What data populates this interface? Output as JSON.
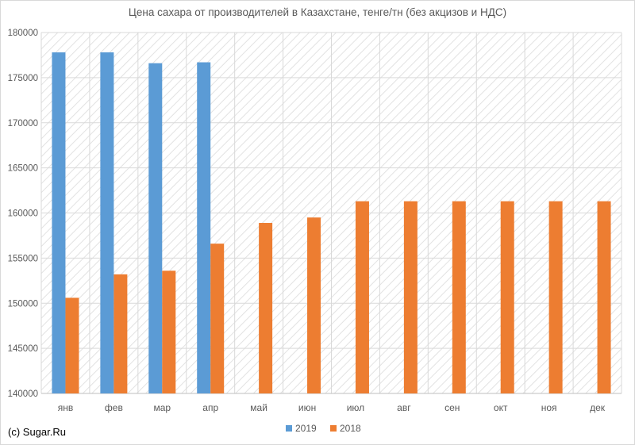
{
  "chart_data": {
    "type": "bar",
    "title": "Цена сахара от производителей в Казахстане, тенге/тн (без акцизов и НДС)",
    "xlabel": "",
    "ylabel": "",
    "categories": [
      "янв",
      "фев",
      "мар",
      "апр",
      "май",
      "июн",
      "июл",
      "авг",
      "сен",
      "окт",
      "ноя",
      "дек"
    ],
    "series": [
      {
        "name": "2019",
        "color": "#5b9bd5",
        "values": [
          177800,
          177800,
          176600,
          176700,
          null,
          null,
          null,
          null,
          null,
          null,
          null,
          null
        ]
      },
      {
        "name": "2018",
        "color": "#ed7d31",
        "values": [
          150600,
          153200,
          153600,
          156600,
          158900,
          159500,
          161300,
          161300,
          161300,
          161300,
          161300,
          161300
        ]
      }
    ],
    "ylim": [
      140000,
      180000
    ],
    "yticks": [
      "140000",
      "145000",
      "150000",
      "155000",
      "160000",
      "165000",
      "170000",
      "175000",
      "180000"
    ],
    "grid": true,
    "legend_position": "bottom"
  },
  "footer": {
    "credit": "(c) Sugar.Ru"
  }
}
